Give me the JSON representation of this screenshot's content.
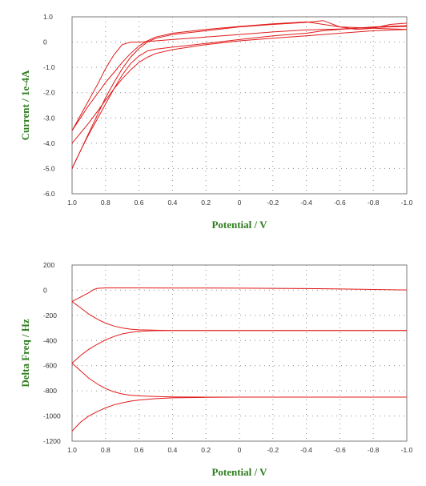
{
  "chart_data": [
    {
      "type": "line",
      "title": "",
      "xlabel": "Potential / V",
      "ylabel": "Current / 1e-4A",
      "xlim": [
        1.0,
        -1.0
      ],
      "ylim": [
        -6.0,
        1.0
      ],
      "x_ticks": [
        1.0,
        0.8,
        0.6,
        0.4,
        0.2,
        0,
        -0.2,
        -0.4,
        -0.6,
        -0.8,
        -1.0
      ],
      "x_tick_labels": [
        "1.0",
        "0.8",
        "0.6",
        "0.4",
        "0.2",
        "0",
        "-0.2",
        "-0.4",
        "-0.6",
        "-0.8",
        "-1.0"
      ],
      "y_ticks": [
        1.0,
        0,
        -1.0,
        -2.0,
        -3.0,
        -4.0,
        -5.0,
        -6.0
      ],
      "y_tick_labels": [
        "1.0",
        "0",
        "-1.0",
        "-2.0",
        "-3.0",
        "-4.0",
        "-5.0",
        "-6.0"
      ],
      "grid": true,
      "color": "#e11b1b",
      "series": [
        {
          "x": [
            1.0,
            0.95,
            0.9,
            0.85,
            0.8,
            0.75,
            0.7,
            0.65,
            0.6,
            0.5,
            0.4,
            0.2,
            0,
            -0.2,
            -0.4,
            -0.5,
            -0.6,
            -0.8,
            -1.0
          ],
          "y": [
            -3.5,
            -2.9,
            -2.3,
            -1.7,
            -1.05,
            -0.5,
            -0.1,
            0.0,
            0.0,
            0.05,
            0.1,
            0.2,
            0.3,
            0.4,
            0.48,
            0.5,
            0.52,
            0.58,
            0.62
          ]
        },
        {
          "x": [
            -1.0,
            -0.8,
            -0.6,
            -0.5,
            -0.4,
            -0.2,
            0,
            0.2,
            0.4,
            0.5,
            0.55,
            0.6,
            0.65,
            0.7,
            0.75,
            0.8,
            0.85,
            0.9,
            0.95,
            1.0
          ],
          "y": [
            0.65,
            0.6,
            0.5,
            0.45,
            0.35,
            0.25,
            0.1,
            -0.05,
            -0.2,
            -0.28,
            -0.35,
            -0.55,
            -0.85,
            -1.3,
            -1.85,
            -2.45,
            -3.05,
            -3.65,
            -4.3,
            -5.0
          ]
        },
        {
          "x": [
            1.0,
            0.95,
            0.9,
            0.85,
            0.8,
            0.75,
            0.7,
            0.65,
            0.6,
            0.55,
            0.5,
            0.4,
            0.2,
            0,
            -0.2,
            -0.4,
            -0.5,
            -0.6,
            -0.7,
            -0.8,
            -0.9,
            -1.0
          ],
          "y": [
            -5.0,
            -4.3,
            -3.6,
            -2.9,
            -2.2,
            -1.6,
            -1.05,
            -0.6,
            -0.25,
            0.0,
            0.15,
            0.3,
            0.45,
            0.6,
            0.7,
            0.78,
            0.85,
            0.6,
            0.5,
            0.55,
            0.7,
            0.75
          ]
        },
        {
          "x": [
            -1.0,
            -0.8,
            -0.6,
            -0.4,
            -0.2,
            0,
            0.2,
            0.4,
            0.5,
            0.55,
            0.6,
            0.65,
            0.7,
            0.75,
            0.8,
            0.85,
            0.9,
            0.95,
            1.0
          ],
          "y": [
            0.5,
            0.45,
            0.35,
            0.25,
            0.15,
            0.05,
            -0.1,
            -0.3,
            -0.45,
            -0.6,
            -0.8,
            -1.1,
            -1.45,
            -1.85,
            -2.3,
            -2.75,
            -3.2,
            -3.6,
            -4.0
          ]
        },
        {
          "x": [
            1.0,
            0.95,
            0.9,
            0.85,
            0.8,
            0.75,
            0.7,
            0.65,
            0.6,
            0.55,
            0.5,
            0.4,
            0.2,
            0,
            -0.2,
            -0.4,
            -0.6,
            -0.8,
            -1.0
          ],
          "y": [
            -3.5,
            -3.0,
            -2.5,
            -2.05,
            -1.6,
            -1.2,
            -0.8,
            -0.45,
            -0.15,
            0.05,
            0.2,
            0.35,
            0.5,
            0.62,
            0.72,
            0.8,
            0.6,
            0.55,
            0.5
          ]
        }
      ]
    },
    {
      "type": "line",
      "title": "",
      "xlabel": "Potential / V",
      "ylabel": "Delta Freq / Hz",
      "xlim": [
        1.0,
        -1.0
      ],
      "ylim": [
        -1200,
        200
      ],
      "x_ticks": [
        1.0,
        0.8,
        0.6,
        0.4,
        0.2,
        0,
        -0.2,
        -0.4,
        -0.6,
        -0.8,
        -1.0
      ],
      "x_tick_labels": [
        "1.0",
        "0.8",
        "0.6",
        "0.4",
        "0.2",
        "0",
        "-0.2",
        "-0.4",
        "-0.6",
        "-0.8",
        "-1.0"
      ],
      "y_ticks": [
        200,
        0,
        -200,
        -400,
        -600,
        -800,
        -1000,
        -1200
      ],
      "y_tick_labels": [
        "200",
        "0",
        "-200",
        "-400",
        "-600",
        "-800",
        "-1000",
        "-1200"
      ],
      "grid": true,
      "color": "#e11b1b",
      "series": [
        {
          "x": [
            1.0,
            0.95,
            0.9,
            0.87,
            0.85,
            0.8,
            0.6,
            0.4,
            0.2,
            0,
            -0.2,
            -0.4,
            -0.6,
            -0.8,
            -1.0
          ],
          "y": [
            -90,
            -55,
            -20,
            5,
            15,
            18,
            18,
            17,
            17,
            16,
            15,
            13,
            10,
            6,
            2
          ]
        },
        {
          "x": [
            1.0,
            0.95,
            0.9,
            0.85,
            0.8,
            0.75,
            0.7,
            0.65,
            0.6,
            0.5,
            0.4,
            0.2,
            0,
            -0.2,
            -0.4,
            -0.6,
            -0.8,
            -1.0
          ],
          "y": [
            -90,
            -140,
            -190,
            -230,
            -262,
            -285,
            -300,
            -310,
            -315,
            -318,
            -320,
            -320,
            -320,
            -320,
            -320,
            -320,
            -320,
            -320
          ]
        },
        {
          "x": [
            1.0,
            0.95,
            0.9,
            0.85,
            0.8,
            0.75,
            0.7,
            0.65,
            0.6,
            0.5,
            0.4,
            0.2,
            0,
            -0.2,
            -0.4,
            -0.6,
            -0.8,
            -1.0
          ],
          "y": [
            -580,
            -520,
            -470,
            -430,
            -395,
            -368,
            -347,
            -335,
            -327,
            -322,
            -320,
            -320,
            -320,
            -320,
            -320,
            -320,
            -320,
            -320
          ]
        },
        {
          "x": [
            1.0,
            0.95,
            0.9,
            0.85,
            0.8,
            0.75,
            0.7,
            0.65,
            0.6,
            0.5,
            0.4,
            0.2,
            0,
            -0.2,
            -0.4,
            -0.6,
            -0.8,
            -1.0
          ],
          "y": [
            -580,
            -640,
            -700,
            -745,
            -782,
            -808,
            -825,
            -835,
            -840,
            -845,
            -848,
            -850,
            -850,
            -850,
            -850,
            -850,
            -850,
            -850
          ]
        },
        {
          "x": [
            1.0,
            0.95,
            0.9,
            0.85,
            0.8,
            0.75,
            0.7,
            0.65,
            0.6,
            0.5,
            0.4,
            0.2,
            0,
            -0.2,
            -0.4,
            -0.6,
            -0.8,
            -1.0
          ],
          "y": [
            -1120,
            -1050,
            -1000,
            -965,
            -935,
            -912,
            -895,
            -882,
            -873,
            -862,
            -856,
            -852,
            -850,
            -850,
            -850,
            -850,
            -850,
            -850
          ]
        }
      ]
    }
  ]
}
